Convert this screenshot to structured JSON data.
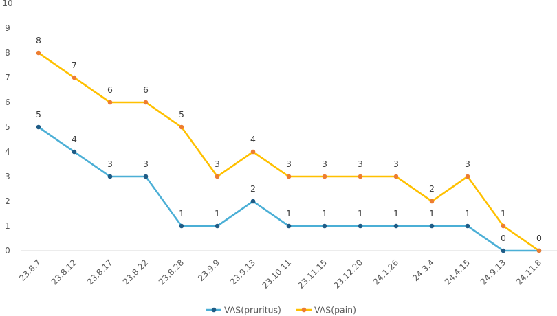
{
  "chart_data": {
    "type": "line",
    "title": "",
    "xlabel": "",
    "ylabel": "",
    "categories": [
      "23.8.7",
      "23.8.12",
      "23.8.17",
      "23.8.22",
      "23.8.28",
      "23.9.9",
      "23.9.13",
      "23.10.11",
      "23.11.15",
      "23.12.20",
      "24.1.26",
      "24.3.4",
      "24.4.15",
      "24.9.13",
      "24.11.8"
    ],
    "ylim": [
      0,
      10
    ],
    "yticks": [
      0,
      1,
      2,
      3,
      4,
      5,
      6,
      7,
      8,
      9,
      10
    ],
    "grid": false,
    "legend_position": "bottom",
    "series": [
      {
        "name": "VAS(pruritus)",
        "line_color": "#4BAFD6",
        "marker_color": "#1F5C86",
        "values": [
          5,
          4,
          3,
          3,
          1,
          1,
          2,
          1,
          1,
          1,
          1,
          1,
          1,
          0,
          0
        ]
      },
      {
        "name": "VAS(pain)",
        "line_color": "#FFC000",
        "marker_color": "#ED7D31",
        "values": [
          8,
          7,
          6,
          6,
          5,
          3,
          4,
          3,
          3,
          3,
          3,
          2,
          3,
          1,
          0
        ]
      }
    ]
  }
}
